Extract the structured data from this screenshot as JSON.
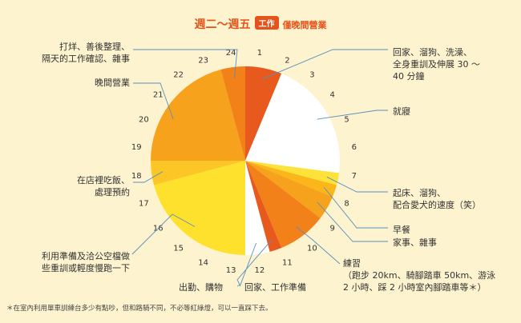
{
  "chart_data": {
    "type": "pie",
    "title_prefix": "週二〜週五",
    "title_tag": "工作",
    "title_suffix": "僅晚間營業",
    "hour_labels": [
      "1",
      "2",
      "3",
      "4",
      "5",
      "6",
      "7",
      "8",
      "9",
      "10",
      "11",
      "12",
      "13",
      "14",
      "15",
      "16",
      "17",
      "18",
      "19",
      "20",
      "21",
      "22",
      "23",
      "24"
    ],
    "slices": [
      {
        "start": 0,
        "end": 1.5,
        "color": "#e8591e",
        "label": "回家、溜狗、洗澡、\n全身重訓及伸展 30 〜\n40 分鐘"
      },
      {
        "start": 1.5,
        "end": 6.5,
        "color": "#ffffff",
        "label": "就寢"
      },
      {
        "start": 6.5,
        "end": 7,
        "color": "#fde23a",
        "label": "起床、溜狗、\n配合愛犬的速度（笑）"
      },
      {
        "start": 7,
        "end": 7.5,
        "color": "#fbb71a",
        "label": "早餐"
      },
      {
        "start": 7.5,
        "end": 8.5,
        "color": "#f6a21c",
        "label": "家事、雜事"
      },
      {
        "start": 8.5,
        "end": 10.5,
        "color": "#f28119",
        "label": "練習\n（跑步 20km、騎腳踏車 50km、游泳\n2 小時、踩 2 小時室內腳踏車等＊）"
      },
      {
        "start": 10.5,
        "end": 11,
        "color": "#e8591e",
        "label": "回家、工作準備"
      },
      {
        "start": 11,
        "end": 12,
        "color": "#ffffff",
        "label": "出勤、購物"
      },
      {
        "start": 12,
        "end": 17,
        "color": "#fde12c",
        "label": "利用準備及洽公空檔做\n些重訓或輕度慢跑一下"
      },
      {
        "start": 17,
        "end": 18,
        "color": "#fcc626",
        "label": "在店裡吃飯、\n處理預約"
      },
      {
        "start": 18,
        "end": 23,
        "color": "#f6a21c",
        "label": "晚間營業"
      },
      {
        "start": 23,
        "end": 24,
        "color": "#f28119",
        "label": "打烊、善後整理、\n隔天的工作確認、雜事"
      }
    ],
    "footnote": "＊在室內利用單車訓練台多少有點吵，但和路騎不同，不必等紅綠燈，可以一直踩下去。"
  },
  "colors": {
    "accent": "#e5531a",
    "background": "#fdf3cf",
    "leader_line": "#5a8fbf"
  }
}
